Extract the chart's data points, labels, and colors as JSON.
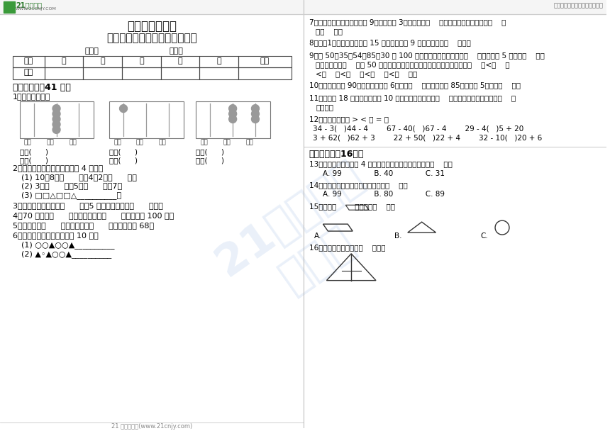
{
  "title_line1": "苏教版小学数学",
  "title_line2": "一年级下册期中阶段质量调研卷",
  "name_label": "姓名：",
  "class_label": "班级：",
  "table_headers": [
    "题号",
    "一",
    "二",
    "三",
    "四",
    "五",
    "总分"
  ],
  "table_row": [
    "得分",
    "",
    "",
    "",
    "",
    "",
    ""
  ],
  "section1_title": "一、填空题（41 分）",
  "section2_title": "二、选择题（16分）",
  "header_logo_text": "21世纪教育",
  "header_logo_url": "WWW.21CNJY.COM",
  "header_right": "中小学教育资源及组卷应用平台",
  "footer": "21 世纪教育网(www.21cnjy.com)",
  "watermark": "21世纪教育",
  "bg_color": "#ffffff",
  "text_color": "#000000",
  "border_color": "#333333",
  "q12_label": "12．在括号里填上 > < 或 = 。",
  "q12_row1": "34 - 3(   )44 - 4        67 - 40(   )67 - 4        29 - 4(   )5 + 20",
  "q12_row2": "3 + 62(   )62 + 3        22 + 50(   )22 + 4        32 - 10(   )20 + 6"
}
